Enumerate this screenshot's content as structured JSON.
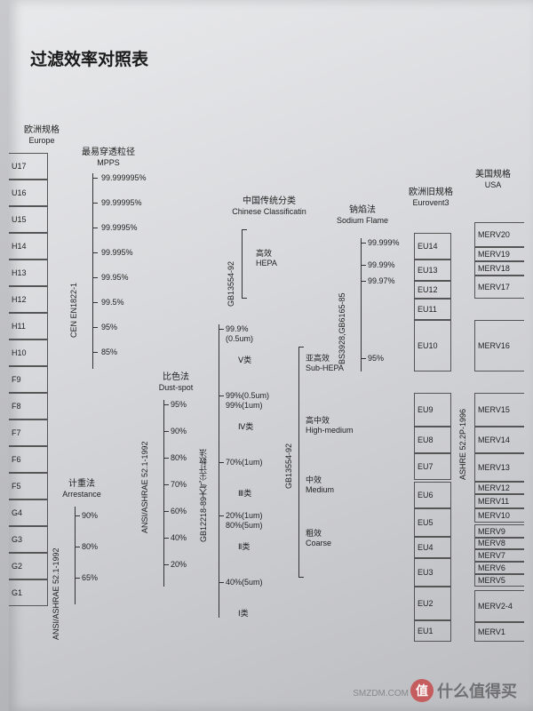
{
  "title": "过滤效率对照表",
  "columns": {
    "europe": {
      "cn": "欧洲规格",
      "en": "Europe"
    },
    "mpps": {
      "cn": "最易穿透粒径",
      "en": "MPPS"
    },
    "arrest": {
      "cn": "计重法",
      "en": "Arrestance"
    },
    "dust": {
      "cn": "比色法",
      "en": "Dust-spot"
    },
    "chinese": {
      "cn": "中国传统分类",
      "en": "Chinese Classificatin"
    },
    "sodium": {
      "cn": "钠焰法",
      "en": "Sodium Flame"
    },
    "eurovent": {
      "cn": "欧洲旧规格",
      "en": "Eurovent3"
    },
    "usa": {
      "cn": "美国规格",
      "en": "USA"
    }
  },
  "europe_std": "CEN EN1822-1",
  "europe_classes": [
    "U17",
    "U16",
    "U15",
    "H14",
    "H13",
    "H12",
    "H11",
    "H10",
    "F9",
    "F8",
    "F7",
    "F6",
    "F5",
    "G4",
    "G3",
    "G2",
    "G1"
  ],
  "mpps_vals": [
    "99.999995%",
    "99.99995%",
    "99.9995%",
    "99.995%",
    "99.95%",
    "99.5%",
    "95%",
    "85%"
  ],
  "arrest_std": "ANSI/ASHRAE 52.1-1992",
  "arrest_vals": [
    "90%",
    "80%",
    "65%"
  ],
  "dust_std": "ANSI/ASHRAE 52.1-1992",
  "dust_vals": [
    "95%",
    "90%",
    "80%",
    "70%",
    "60%",
    "40%",
    "20%"
  ],
  "gb_top": "GB13554-92",
  "gb_btm_std": "GB12218-89大气尘计数法",
  "gb_btm": [
    {
      "l1": "99.9%",
      "l2": "(0.5um)",
      "cls": "Ⅴ类"
    },
    {
      "l1": "99%(0.5um)",
      "l2": "99%(1um)",
      "cls": "Ⅳ类"
    },
    {
      "l1": "70%(1um)",
      "l2": "",
      "cls": "Ⅲ类"
    },
    {
      "l1": "20%(1um)",
      "l2": "80%(5um)",
      "cls": "Ⅱ类"
    },
    {
      "l1": "40%(5um)",
      "l2": "",
      "cls": "Ⅰ类"
    }
  ],
  "chinese_cats": [
    {
      "cn": "高效",
      "en": "HEPA"
    },
    {
      "cn": "亚高效",
      "en": "Sub-HEPA"
    },
    {
      "cn": "高中效",
      "en": "High-medium"
    },
    {
      "cn": "中效",
      "en": "Medium"
    },
    {
      "cn": "粗效",
      "en": "Coarse"
    }
  ],
  "gb_mid": "GB13554-92",
  "sodium_std": "BS3928,GB6165-85",
  "sodium_vals": [
    "99.999%",
    "99.99%",
    "99.97%",
    "95%"
  ],
  "eurovent_classes": [
    "EU14",
    "EU13",
    "EU12",
    "EU11",
    "EU10",
    "EU9",
    "EU8",
    "EU7",
    "EU6",
    "EU5",
    "EU4",
    "EU3",
    "EU2",
    "EU1"
  ],
  "usa_std": "ASHRE 52.2P-1996",
  "merv": [
    "MERV20",
    "MERV19",
    "MERV18",
    "MERV17",
    "MERV16",
    "MERV15",
    "MERV14",
    "MERV13",
    "MERV12",
    "MERV11",
    "MERV10",
    "MERV9",
    "MERV8",
    "MERV7",
    "MERV6",
    "MERV5",
    "MERV2-4",
    "MERV1"
  ],
  "watermark": "什么值得买",
  "wm_badge": "值"
}
